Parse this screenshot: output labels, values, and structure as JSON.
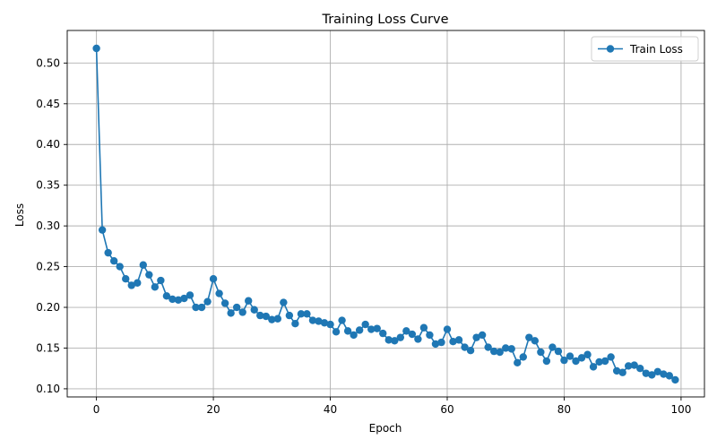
{
  "chart_data": {
    "type": "line",
    "title": "Training Loss Curve",
    "xlabel": "Epoch",
    "ylabel": "Loss",
    "xlim": [
      -5,
      104
    ],
    "ylim": [
      0.09,
      0.54
    ],
    "xticks": [
      0,
      20,
      40,
      60,
      80,
      100
    ],
    "yticks": [
      0.1,
      0.15,
      0.2,
      0.25,
      0.3,
      0.35,
      0.4,
      0.45,
      0.5
    ],
    "grid": true,
    "legend_position": "top-right",
    "series": [
      {
        "name": "Train Loss",
        "color": "#1f77b4",
        "marker": "circle",
        "x": [
          0,
          1,
          2,
          3,
          4,
          5,
          6,
          7,
          8,
          9,
          10,
          11,
          12,
          13,
          14,
          15,
          16,
          17,
          18,
          19,
          20,
          21,
          22,
          23,
          24,
          25,
          26,
          27,
          28,
          29,
          30,
          31,
          32,
          33,
          34,
          35,
          36,
          37,
          38,
          39,
          40,
          41,
          42,
          43,
          44,
          45,
          46,
          47,
          48,
          49,
          50,
          51,
          52,
          53,
          54,
          55,
          56,
          57,
          58,
          59,
          60,
          61,
          62,
          63,
          64,
          65,
          66,
          67,
          68,
          69,
          70,
          71,
          72,
          73,
          74,
          75,
          76,
          77,
          78,
          79,
          80,
          81,
          82,
          83,
          84,
          85,
          86,
          87,
          88,
          89,
          90,
          91,
          92,
          93,
          94,
          95,
          96,
          97,
          98,
          99
        ],
        "values": [
          0.518,
          0.295,
          0.267,
          0.257,
          0.25,
          0.235,
          0.227,
          0.23,
          0.252,
          0.24,
          0.225,
          0.233,
          0.214,
          0.21,
          0.209,
          0.211,
          0.215,
          0.2,
          0.2,
          0.207,
          0.235,
          0.217,
          0.205,
          0.193,
          0.2,
          0.194,
          0.208,
          0.197,
          0.19,
          0.189,
          0.185,
          0.186,
          0.206,
          0.19,
          0.18,
          0.192,
          0.192,
          0.184,
          0.183,
          0.181,
          0.179,
          0.17,
          0.184,
          0.171,
          0.166,
          0.172,
          0.179,
          0.173,
          0.174,
          0.168,
          0.16,
          0.159,
          0.163,
          0.171,
          0.167,
          0.161,
          0.175,
          0.166,
          0.155,
          0.157,
          0.173,
          0.158,
          0.16,
          0.151,
          0.147,
          0.163,
          0.166,
          0.151,
          0.146,
          0.145,
          0.15,
          0.149,
          0.132,
          0.139,
          0.163,
          0.159,
          0.145,
          0.134,
          0.151,
          0.146,
          0.135,
          0.14,
          0.134,
          0.138,
          0.142,
          0.127,
          0.133,
          0.134,
          0.139,
          0.122,
          0.12,
          0.128,
          0.129,
          0.125,
          0.119,
          0.117,
          0.121,
          0.118,
          0.116,
          0.111
        ]
      }
    ]
  }
}
